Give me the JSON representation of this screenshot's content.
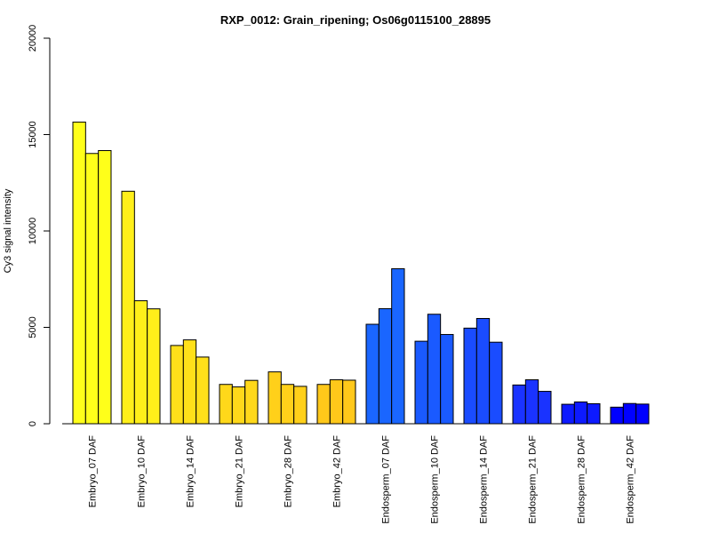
{
  "chart_data": {
    "type": "bar",
    "title": "RXP_0012: Grain_ripening; Os06g0115100_28895",
    "ylabel": "Cy3 signal intensity",
    "ylim": [
      0,
      20000
    ],
    "yticks": [
      0,
      5000,
      10000,
      15000,
      20000
    ],
    "grid": false,
    "categories": [
      "Embryo_07 DAF",
      "Embryo_10 DAF",
      "Embryo_14 DAF",
      "Embryo_21 DAF",
      "Embryo_28 DAF",
      "Embryo_42 DAF",
      "Endosperm_07 DAF",
      "Endosperm_10 DAF",
      "Endosperm_14 DAF",
      "Endosperm_21 DAF",
      "Endosperm_28 DAF",
      "Endosperm_42 DAF"
    ],
    "values": [
      [
        15650,
        14020,
        14170
      ],
      [
        12060,
        6380,
        5960
      ],
      [
        4060,
        4350,
        3460
      ],
      [
        2040,
        1910,
        2250
      ],
      [
        2690,
        2040,
        1940
      ],
      [
        2040,
        2280,
        2260
      ],
      [
        5160,
        5970,
        8040
      ],
      [
        4280,
        5680,
        4630
      ],
      [
        4960,
        5460,
        4230
      ],
      [
        2010,
        2280,
        1680
      ],
      [
        1010,
        1130,
        1040
      ],
      [
        860,
        1050,
        1020
      ]
    ],
    "colors": [
      "#FFFF1A",
      "#FFEF1A",
      "#FFE01A",
      "#FFD81A",
      "#FFD01A",
      "#FFC81A",
      "#1A66FF",
      "#1A5AFF",
      "#1A4CFF",
      "#1A33FF",
      "#0D1AFF",
      "#0000FF"
    ]
  }
}
